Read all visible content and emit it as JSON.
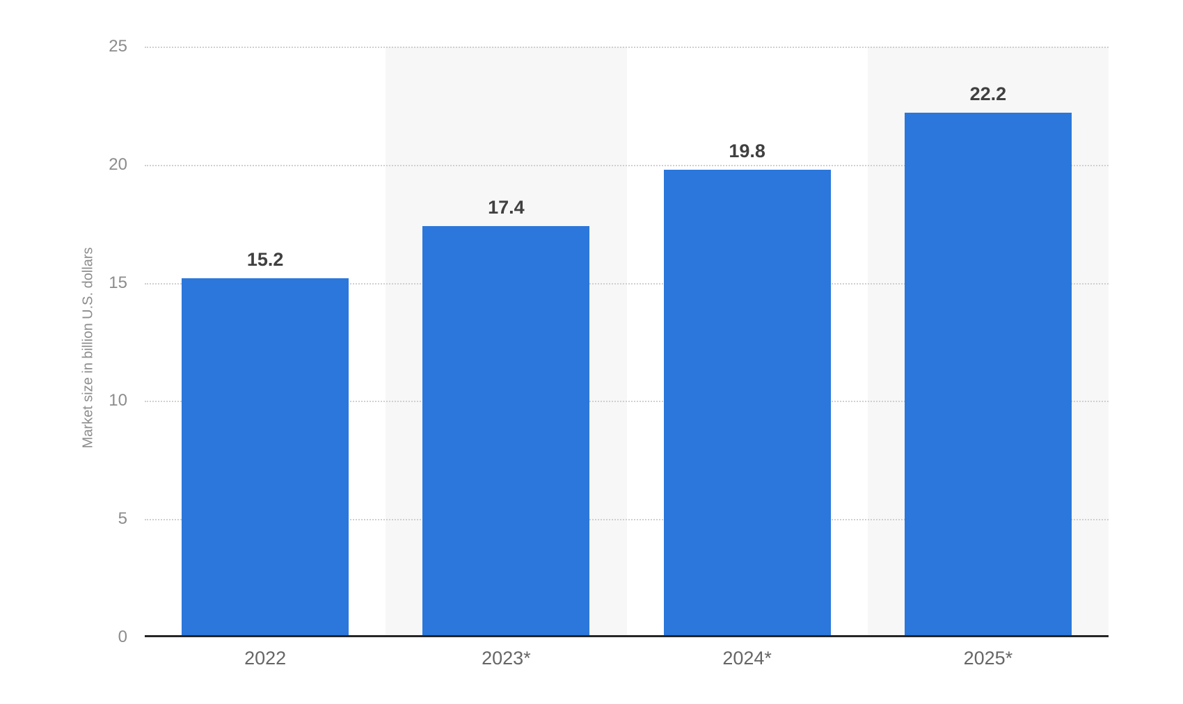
{
  "chart_data": {
    "type": "bar",
    "title": "",
    "categories": [
      "2022",
      "2023*",
      "2024*",
      "2025*"
    ],
    "values": [
      15.2,
      17.4,
      19.8,
      22.2
    ],
    "value_labels": [
      "15.2",
      "17.4",
      "19.8",
      "22.2"
    ],
    "xlabel": "",
    "ylabel": "Market size in billion U.S. dollars",
    "ylim": [
      0,
      25
    ],
    "yticks": [
      0,
      5,
      10,
      15,
      20,
      25
    ],
    "grid": "horizontal-dotted",
    "legend": "none",
    "colors": {
      "bar": "#2b77db",
      "band_alt": "#f7f7f7",
      "gridline": "#cfcfcf",
      "axis_line": "#262626",
      "y_tick_label": "#8c8c8c",
      "x_tick_label": "#666666",
      "value_label": "#404040",
      "background": "#ffffff"
    }
  }
}
